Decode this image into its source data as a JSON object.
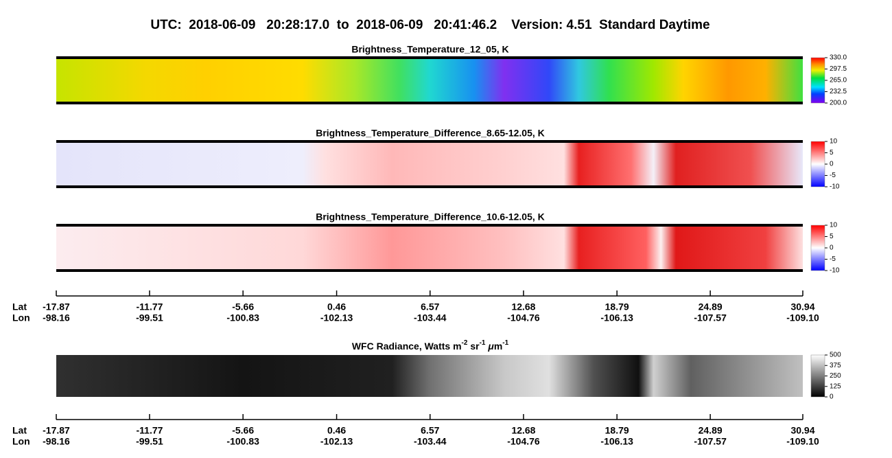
{
  "header": {
    "title": "UTC:  2018-06-09   20:28:17.0  to  2018-06-09   20:41:46.2    Version: 4.51  Standard Daytime"
  },
  "panels": [
    {
      "title": "Brightness_Temperature_12_05, K",
      "colorbar": {
        "ticks": [
          {
            "value": 330,
            "label": "330.0"
          },
          297.5,
          {
            "value": 265,
            "label": "265.0"
          },
          232.5,
          {
            "value": 200,
            "label": "200.0"
          }
        ]
      }
    },
    {
      "title": "Brightness_Temperature_Difference_8.65-12.05, K",
      "colorbar": {
        "ticks": [
          10,
          5,
          0,
          -5,
          -10
        ]
      }
    },
    {
      "title": "Brightness_Temperature_Difference_10.6-12.05, K",
      "colorbar": {
        "ticks": [
          10,
          5,
          0,
          -5,
          -10
        ]
      }
    },
    {
      "title_parts": [
        "WFC Radiance, Watts m",
        "-2",
        " sr",
        "-1",
        " ",
        "μ",
        "m",
        "-1"
      ],
      "colorbar": {
        "ticks": [
          500,
          375,
          250,
          125,
          0
        ]
      }
    }
  ],
  "axes": [
    {
      "lat_label": "Lat",
      "lon_label": "Lon",
      "lat": [
        -17.87,
        -11.77,
        -5.66,
        0.46,
        6.57,
        12.68,
        18.79,
        24.89,
        30.94
      ],
      "lon": [
        -98.16,
        -99.51,
        -100.83,
        -102.13,
        -103.44,
        -104.76,
        -106.13,
        -107.57,
        {
          "value": -109.1,
          "label": "-109.10"
        }
      ]
    },
    {
      "lat_label": "Lat",
      "lon_label": "Lon",
      "lat": [
        -17.87,
        -11.77,
        -5.66,
        0.46,
        6.57,
        12.68,
        18.79,
        24.89,
        30.94
      ],
      "lon": [
        -98.16,
        -99.51,
        -100.83,
        -102.13,
        -103.44,
        -104.76,
        -106.13,
        -107.57,
        {
          "value": -109.1,
          "label": "-109.10"
        }
      ]
    }
  ]
}
